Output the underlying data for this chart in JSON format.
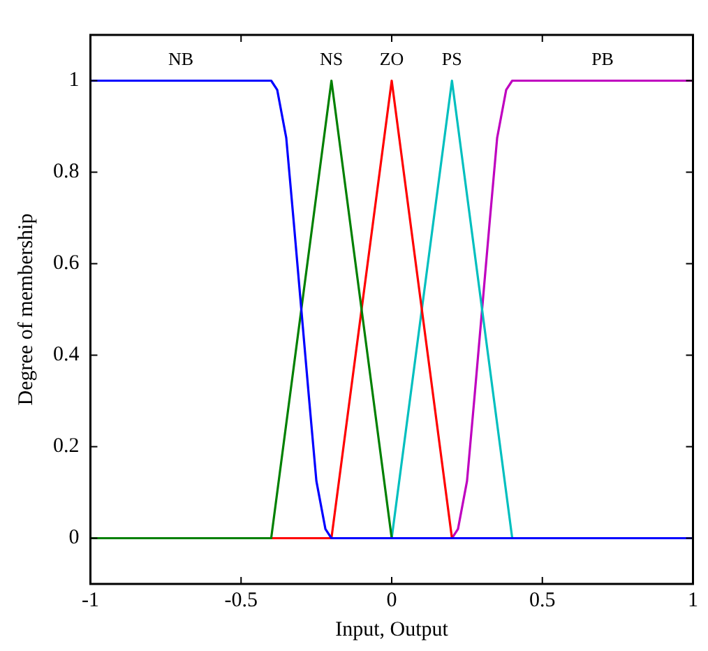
{
  "chart_data": {
    "type": "line",
    "xlabel": "Input, Output",
    "ylabel": "Degree of membership",
    "xlim": [
      -1,
      1
    ],
    "ylim": [
      -0.1,
      1.1
    ],
    "xticks": [
      -1,
      -0.5,
      0,
      0.5,
      1
    ],
    "yticks": [
      0,
      0.2,
      0.4,
      0.6,
      0.8,
      1
    ],
    "grid": false,
    "legend": false,
    "marker": "none",
    "line_style": "solid",
    "series": [
      {
        "name": "NB",
        "color": "#0000ff",
        "x": [
          -1,
          -0.4,
          -0.38,
          -0.35,
          -0.325,
          -0.3,
          -0.275,
          -0.25,
          -0.22,
          -0.2,
          1
        ],
        "values": [
          1,
          1,
          0.98,
          0.875,
          0.69,
          0.5,
          0.31,
          0.125,
          0.02,
          0,
          0
        ]
      },
      {
        "name": "NS",
        "color": "#008000",
        "x": [
          -1,
          -0.4,
          -0.2,
          0,
          1
        ],
        "values": [
          0,
          0,
          1,
          0,
          0
        ]
      },
      {
        "name": "ZO",
        "color": "#ff0000",
        "x": [
          -1,
          -0.2,
          0,
          0.2,
          1
        ],
        "values": [
          0,
          0,
          1,
          0,
          0
        ]
      },
      {
        "name": "PS",
        "color": "#00bfbf",
        "x": [
          -1,
          0,
          0.2,
          0.4,
          1
        ],
        "values": [
          0,
          0,
          1,
          0,
          0
        ]
      },
      {
        "name": "PB",
        "color": "#bf00bf",
        "x": [
          -1,
          0.2,
          0.22,
          0.25,
          0.275,
          0.3,
          0.325,
          0.35,
          0.38,
          0.4,
          1
        ],
        "values": [
          0,
          0,
          0.02,
          0.125,
          0.31,
          0.5,
          0.69,
          0.875,
          0.98,
          1,
          1
        ]
      }
    ]
  }
}
